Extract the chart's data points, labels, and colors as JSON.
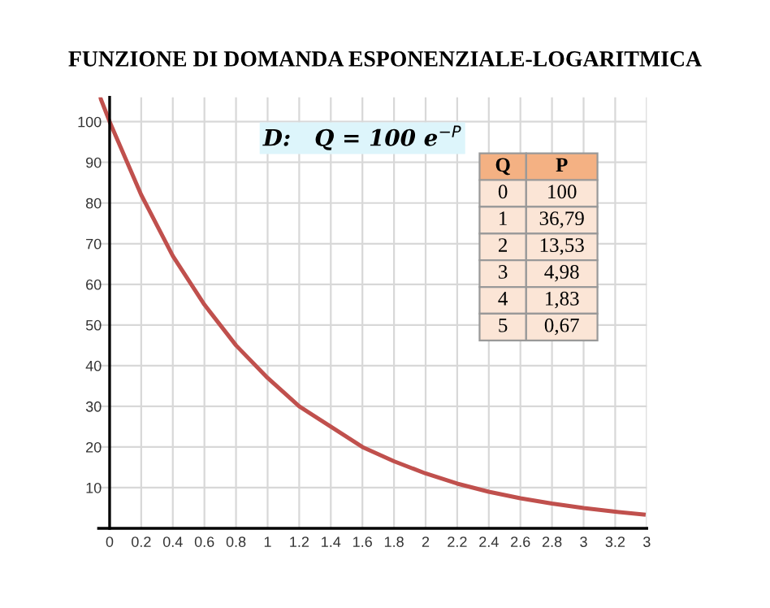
{
  "chart_data": {
    "type": "line",
    "title": "FUNZIONE DI DOMANDA ESPONENZIALE-LOGARITMICA",
    "x": [
      -0.06,
      0,
      0.2,
      0.4,
      0.6,
      0.8,
      1,
      1.2,
      1.4,
      1.6,
      1.8,
      2,
      2.2,
      2.4,
      2.6,
      2.8,
      3,
      3.2,
      3.38
    ],
    "series": [
      {
        "color": "#c0504d",
        "values": [
          106,
          100,
          82,
          67,
          55,
          45,
          37,
          30,
          25,
          20,
          16.5,
          13.5,
          11,
          9,
          7.4,
          6.1,
          5,
          4.1,
          3.4
        ]
      }
    ],
    "xlim": [
      -0.07,
      3.4
    ],
    "ylim": [
      0,
      106
    ],
    "xticks": [
      0,
      0.2,
      0.4,
      0.6,
      0.8,
      1,
      1.2,
      1.4,
      1.6,
      1.8,
      2,
      2.2,
      2.4,
      2.6,
      2.8,
      {
        "value": 3.0,
        "label": "3"
      },
      {
        "value": 3.2,
        "label": "3.2"
      },
      {
        "value": 3.4,
        "label": "3"
      }
    ],
    "yticks": [
      10,
      20,
      30,
      40,
      50,
      60,
      70,
      80,
      90,
      100
    ],
    "grid": true,
    "marker": "none",
    "line_style": "solid",
    "annotations": [
      "D:   Q = 100 e$^{−P}$",
      "Q",
      "P",
      "0",
      "100",
      "1",
      "36,79",
      "2",
      "13,53",
      "3",
      "4,98",
      "4",
      "1,83",
      "5",
      "0,67"
    ]
  }
}
